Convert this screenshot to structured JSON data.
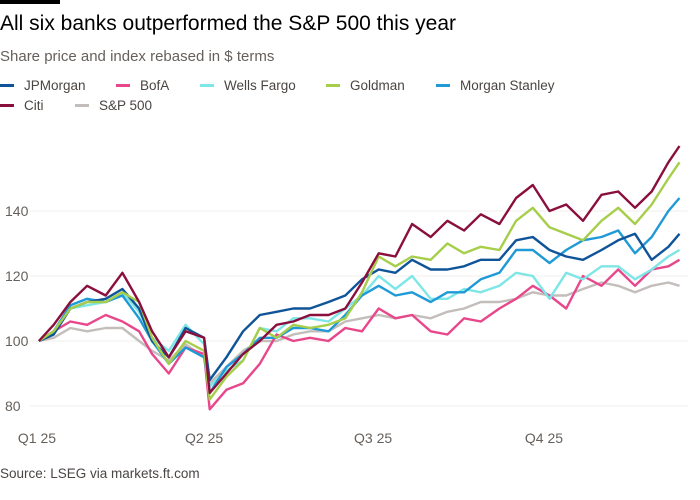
{
  "title": "All six banks outperformed the S&P 500 this year",
  "subtitle": "Share price and index rebased in $ terms",
  "source": "Source: LSEG via markets.ft.com",
  "chart_data": {
    "type": "line",
    "title": "All six banks outperformed the S&P 500 this year",
    "subtitle": "Share price and index rebased in $ terms",
    "xlabel": "",
    "ylabel": "",
    "ylim": [
      75,
      162
    ],
    "yticks": [
      80,
      100,
      120,
      140
    ],
    "xticks": [
      {
        "label": "Q1 25",
        "date": "2025-01-01"
      },
      {
        "label": "Q2 25",
        "date": "2025-04-01"
      },
      {
        "label": "Q3 25",
        "date": "2025-07-01"
      },
      {
        "label": "Q4 25",
        "date": "2025-10-01"
      }
    ],
    "grid": false,
    "legend": "top",
    "x": [
      "2025-01-02",
      "2025-01-10",
      "2025-01-19",
      "2025-01-28",
      "2025-02-07",
      "2025-02-16",
      "2025-02-25",
      "2025-03-04",
      "2025-03-13",
      "2025-03-22",
      "2025-04-01",
      "2025-04-04",
      "2025-04-13",
      "2025-04-22",
      "2025-05-01",
      "2025-05-10",
      "2025-05-19",
      "2025-05-28",
      "2025-06-07",
      "2025-06-16",
      "2025-06-25",
      "2025-07-04",
      "2025-07-13",
      "2025-07-22",
      "2025-08-01",
      "2025-08-10",
      "2025-08-19",
      "2025-08-28",
      "2025-09-07",
      "2025-09-16",
      "2025-09-25",
      "2025-10-04",
      "2025-10-13",
      "2025-10-22",
      "2025-11-01",
      "2025-11-10",
      "2025-11-19",
      "2025-11-28",
      "2025-12-07",
      "2025-12-13"
    ],
    "series": [
      {
        "name": "S&P 500",
        "color": "#c3bdbb",
        "values": [
          100,
          101,
          104,
          103,
          104,
          104,
          100,
          97,
          94,
          99,
          95,
          87,
          92,
          97,
          100,
          100,
          102,
          103,
          103,
          106,
          107,
          108,
          107,
          108,
          107,
          109,
          110,
          112,
          112,
          113,
          115,
          114,
          114,
          116,
          118,
          117,
          115,
          117,
          118,
          117
        ]
      },
      {
        "name": "BofA",
        "color": "#e8478b",
        "values": [
          100,
          103,
          106,
          105,
          108,
          106,
          103,
          96,
          90,
          98,
          96,
          79,
          85,
          87,
          93,
          102,
          100,
          101,
          100,
          104,
          103,
          110,
          107,
          108,
          103,
          102,
          107,
          106,
          110,
          113,
          117,
          114,
          110,
          120,
          117,
          122,
          117,
          122,
          123,
          125
        ]
      },
      {
        "name": "Wells Fargo",
        "color": "#7ee6e6",
        "values": [
          100,
          103,
          110,
          111,
          112,
          115,
          109,
          101,
          97,
          105,
          99,
          86,
          91,
          94,
          104,
          103,
          107,
          107,
          106,
          110,
          114,
          120,
          116,
          120,
          113,
          113,
          116,
          115,
          117,
          121,
          120,
          113,
          121,
          119,
          123,
          123,
          119,
          122,
          126,
          128
        ]
      },
      {
        "name": "Morgan Stanley",
        "color": "#1f9ad6",
        "values": [
          100,
          103,
          111,
          113,
          112,
          114,
          107,
          100,
          93,
          98,
          95,
          84,
          92,
          96,
          101,
          101,
          104,
          104,
          103,
          108,
          114,
          117,
          114,
          115,
          112,
          115,
          115,
          119,
          121,
          128,
          128,
          124,
          128,
          131,
          132,
          134,
          127,
          132,
          140,
          144
        ]
      },
      {
        "name": "JPMorgan",
        "color": "#0f5499",
        "values": [
          100,
          102,
          110,
          112,
          113,
          116,
          110,
          100,
          95,
          104,
          101,
          88,
          95,
          103,
          108,
          109,
          110,
          110,
          112,
          114,
          119,
          122,
          121,
          125,
          122,
          122,
          123,
          125,
          125,
          131,
          132,
          128,
          126,
          125,
          128,
          131,
          133,
          125,
          129,
          133
        ]
      },
      {
        "name": "Goldman",
        "color": "#a6ce4a",
        "values": [
          100,
          103,
          110,
          112,
          112,
          115,
          112,
          101,
          93,
          100,
          97,
          82,
          89,
          94,
          104,
          101,
          105,
          104,
          105,
          107,
          115,
          126,
          123,
          126,
          125,
          130,
          127,
          129,
          128,
          137,
          141,
          135,
          133,
          131,
          137,
          141,
          136,
          142,
          150,
          155
        ]
      },
      {
        "name": "Citi",
        "color": "#8a0f3d",
        "values": [
          100,
          105,
          112,
          117,
          114,
          121,
          112,
          103,
          95,
          103,
          101,
          84,
          90,
          96,
          100,
          105,
          106,
          108,
          108,
          110,
          118,
          127,
          126,
          136,
          132,
          137,
          134,
          139,
          136,
          144,
          148,
          140,
          142,
          137,
          145,
          146,
          141,
          146,
          155,
          160
        ]
      }
    ]
  },
  "legend": [
    {
      "label": "JPMorgan",
      "color": "#0f5499"
    },
    {
      "label": "BofA",
      "color": "#e8478b"
    },
    {
      "label": "Wells Fargo",
      "color": "#7ee6e6"
    },
    {
      "label": "Goldman",
      "color": "#a6ce4a"
    },
    {
      "label": "Morgan Stanley",
      "color": "#1f9ad6"
    },
    {
      "label": "Citi",
      "color": "#8a0f3d"
    },
    {
      "label": "S&P 500",
      "color": "#c3bdbb"
    }
  ]
}
